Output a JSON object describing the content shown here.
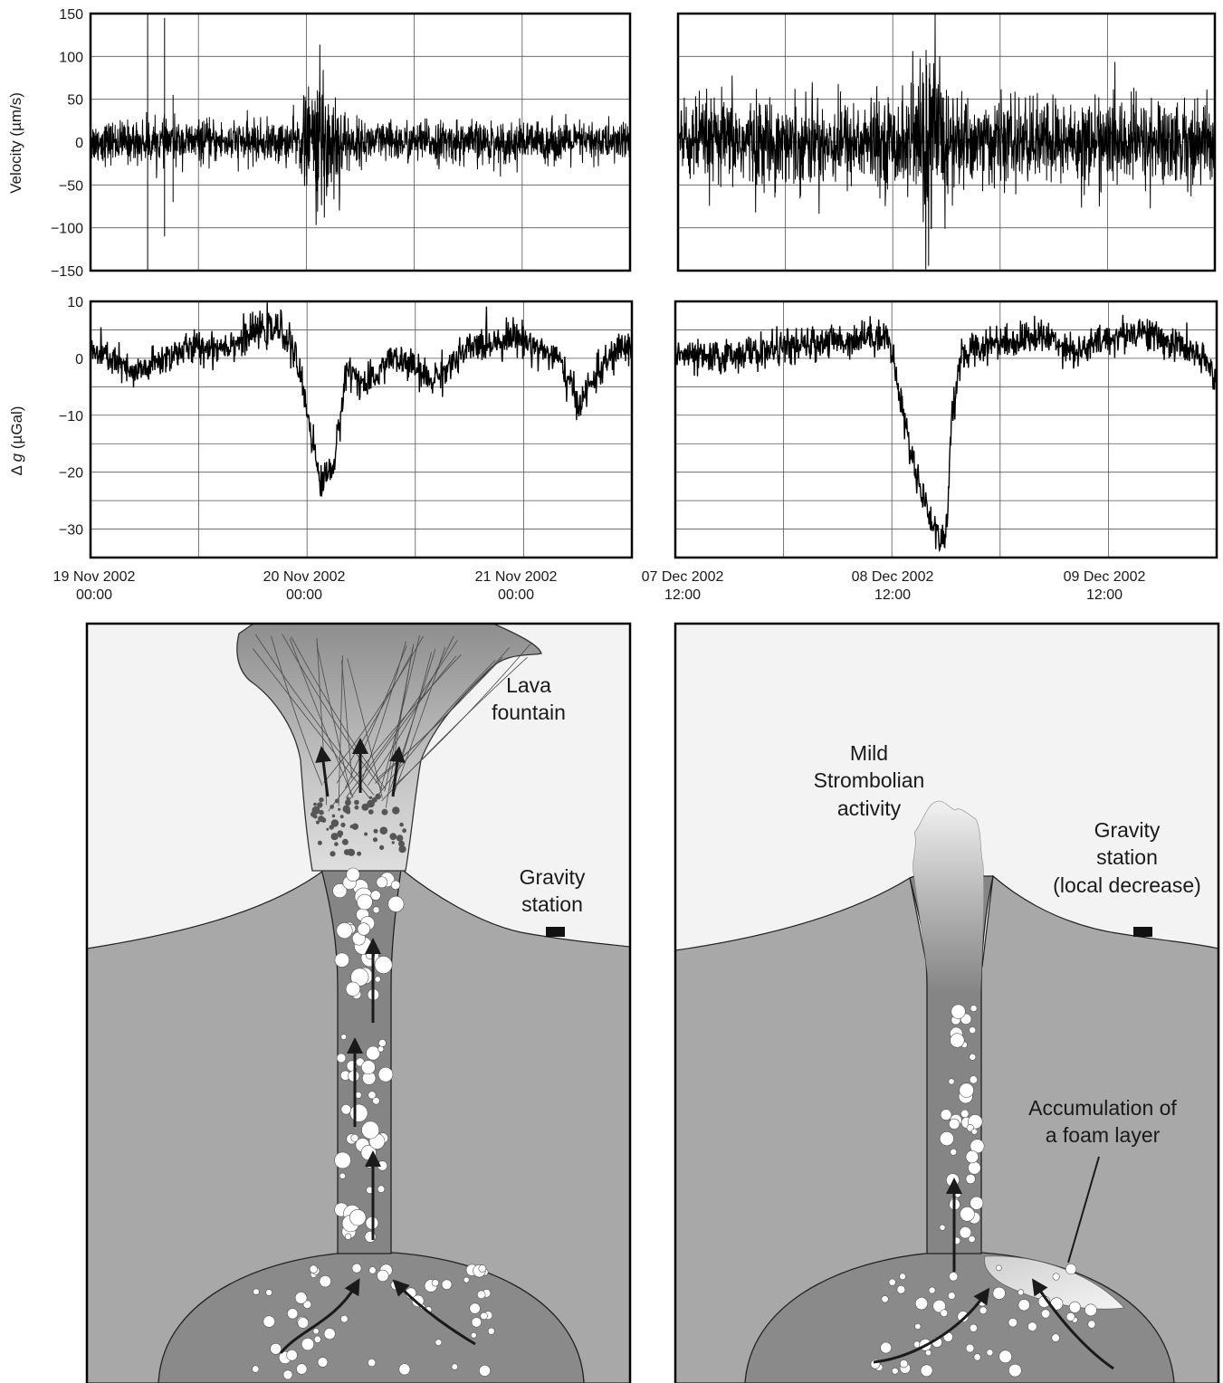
{
  "chart_data": [
    {
      "id": "velocity_nov",
      "type": "line",
      "ylabel": "Velocity (µm/s)",
      "ylim": [
        -150,
        150
      ],
      "yticks": [
        150,
        100,
        50,
        0,
        -50,
        -100,
        -150
      ],
      "ytick_labels": [
        "150",
        "100",
        "50",
        "0",
        "−50",
        "−100",
        "−150"
      ],
      "xlim_days": [
        0,
        2.55
      ],
      "series": [
        {
          "baseline_amplitude": 22,
          "burst": {
            "center_day": 1.1,
            "peak_amplitude": 95
          },
          "spikes": [
            {
              "x_day": 0.27,
              "y": 150
            },
            {
              "x_day": 0.27,
              "y": -150
            },
            {
              "x_day": 0.35,
              "y": 145
            },
            {
              "x_day": 0.35,
              "y": -110
            },
            {
              "x_day": 0.39,
              "y": 55
            },
            {
              "x_day": 0.39,
              "y": -70
            }
          ]
        }
      ],
      "grid": true
    },
    {
      "id": "velocity_dec",
      "type": "line",
      "ylim": [
        -150,
        150
      ],
      "xlim_days": [
        0,
        2.55
      ],
      "series": [
        {
          "baseline_amplitude": 45,
          "burst": {
            "center_day": 1.2,
            "peak_amplitude": 125
          }
        }
      ],
      "grid": true
    },
    {
      "id": "gravity_nov",
      "type": "line",
      "ylabel_prefix": "Δ",
      "ylabel_var": "g",
      "ylabel_unit": "(µGal)",
      "ylim": [
        -35,
        10
      ],
      "yticks": [
        10,
        0,
        -10,
        -20,
        -30
      ],
      "ytick_labels": [
        "10",
        "0",
        "−10",
        "−20",
        "−30"
      ],
      "xlim_days": [
        0,
        2.55
      ],
      "x": [
        0.0,
        0.1,
        0.2,
        0.3,
        0.4,
        0.5,
        0.6,
        0.7,
        0.8,
        0.9,
        0.95,
        1.0,
        1.05,
        1.08,
        1.12,
        1.15,
        1.18,
        1.2,
        1.25,
        1.3,
        1.35,
        1.4,
        1.5,
        1.6,
        1.7,
        1.8,
        1.9,
        2.0,
        2.1,
        2.2,
        2.25,
        2.3,
        2.35,
        2.4,
        2.5,
        2.55
      ],
      "series": [
        {
          "values": [
            1,
            0,
            -3,
            -1,
            1,
            2,
            2,
            3,
            5,
            5,
            2,
            -5,
            -15,
            -22,
            -20,
            -18,
            -10,
            -2,
            -3,
            -5,
            -3,
            0,
            -1,
            -4,
            -1,
            2,
            3,
            4,
            2,
            0,
            -4,
            -8,
            -5,
            -2,
            2,
            2
          ],
          "noise": 1.5
        }
      ],
      "grid": true
    },
    {
      "id": "gravity_dec",
      "type": "line",
      "ylim": [
        -35,
        10
      ],
      "xlim_days": [
        0,
        2.55
      ],
      "x": [
        0.0,
        0.1,
        0.2,
        0.3,
        0.4,
        0.5,
        0.6,
        0.7,
        0.8,
        0.9,
        1.0,
        1.05,
        1.1,
        1.15,
        1.2,
        1.25,
        1.28,
        1.3,
        1.35,
        1.4,
        1.45,
        1.5,
        1.6,
        1.7,
        1.8,
        1.9,
        2.0,
        2.1,
        2.2,
        2.3,
        2.4,
        2.5,
        2.55
      ],
      "series": [
        {
          "values": [
            1,
            0,
            0,
            1,
            1,
            2,
            2,
            3,
            3,
            4,
            4,
            -5,
            -15,
            -22,
            -28,
            -32,
            -30,
            -10,
            0,
            2,
            2,
            3,
            3,
            4,
            3,
            1,
            3,
            4,
            5,
            3,
            2,
            -1,
            -3
          ],
          "noise": 1.5
        }
      ],
      "grid": true
    }
  ],
  "axes": {
    "left_xticks": [
      {
        "line1": "19 Nov 2002",
        "line2": "00:00"
      },
      {
        "line1": "20 Nov 2002",
        "line2": "00:00"
      },
      {
        "line1": "21 Nov 2002",
        "line2": "00:00"
      }
    ],
    "right_xticks": [
      {
        "line1": "07 Dec 2002",
        "line2": "12:00"
      },
      {
        "line1": "08 Dec 2002",
        "line2": "12:00"
      },
      {
        "line1": "09 Dec 2002",
        "line2": "12:00"
      }
    ]
  },
  "diagrams": {
    "left": {
      "lava_fountain": [
        "Lava",
        "fountain"
      ],
      "gravity_station": [
        "Gravity",
        "station"
      ]
    },
    "right": {
      "strombolian": [
        "Mild",
        "Strombolian",
        "activity"
      ],
      "gravity_station": [
        "Gravity",
        "station",
        "(local decrease)"
      ],
      "foam": [
        "Accumulation of",
        "a foam layer"
      ]
    }
  },
  "colors": {
    "sky": "#f3f3f3",
    "ground": "#a8a8a8",
    "conduit": "#858585",
    "bubble": "#ffffff",
    "ink": "#111111"
  }
}
